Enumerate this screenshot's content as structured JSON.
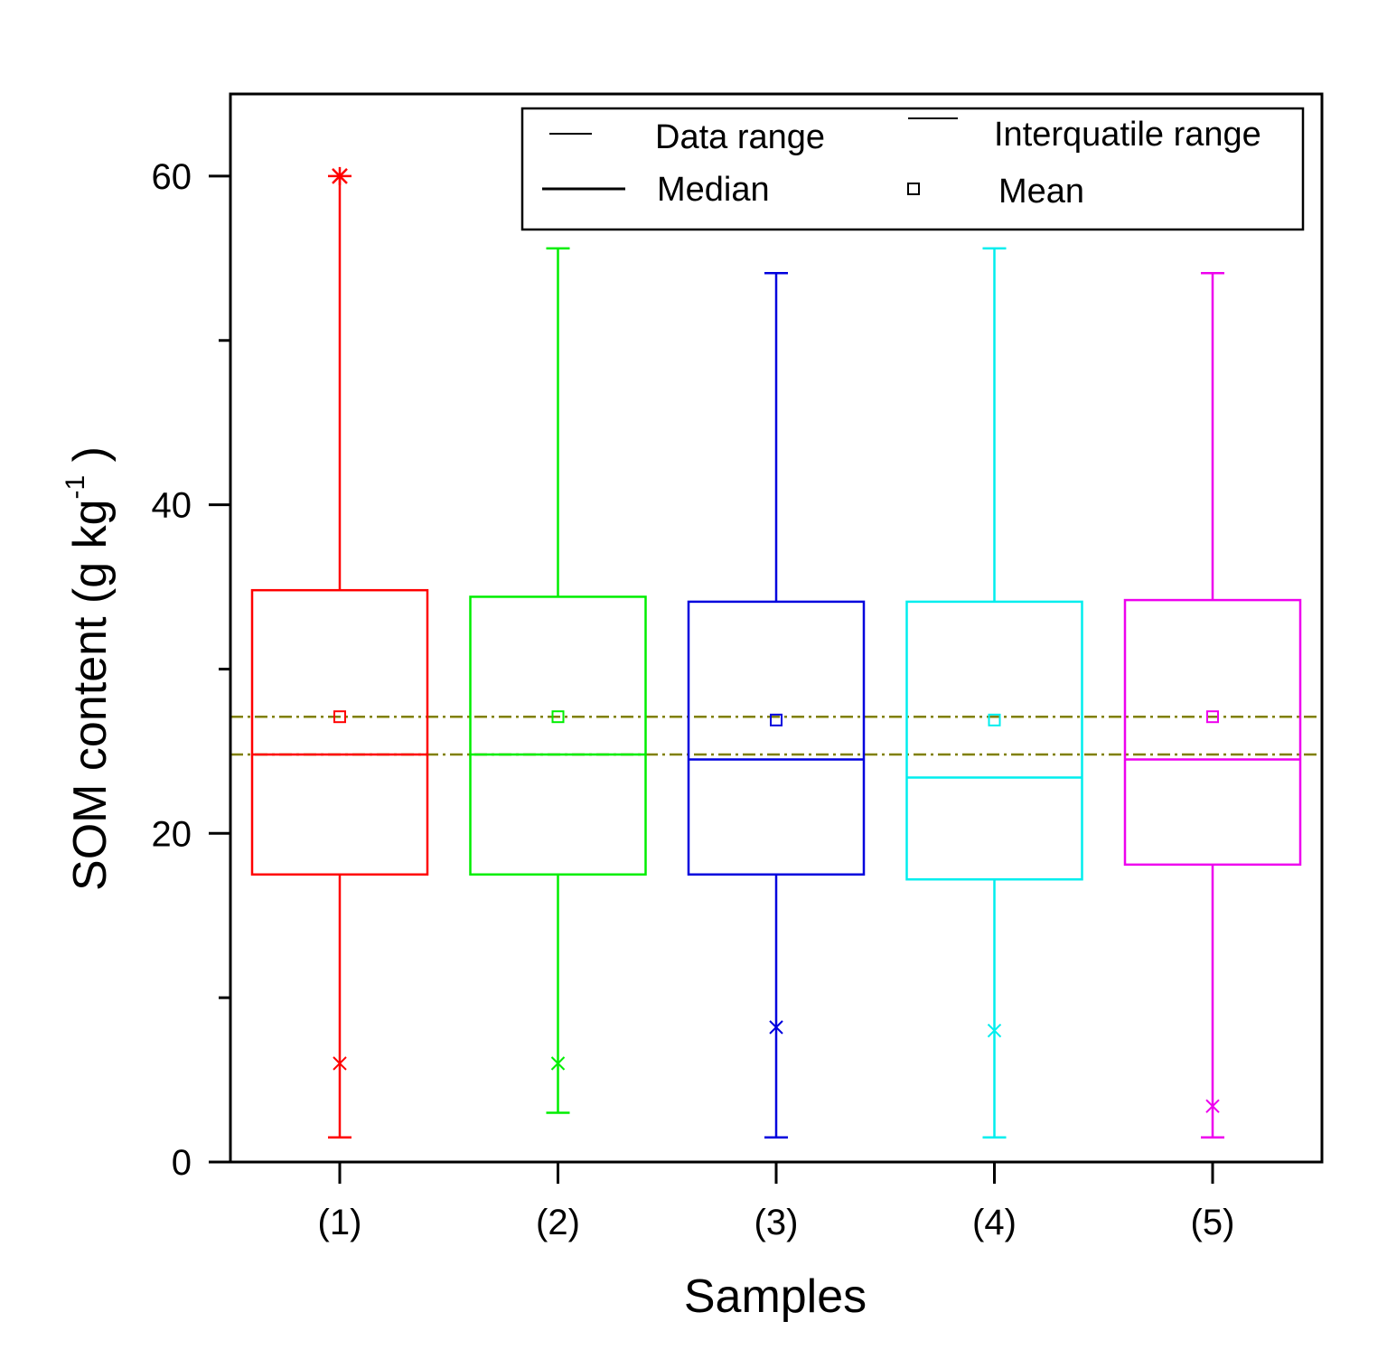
{
  "chart_data": {
    "type": "box",
    "xlabel": "Samples",
    "ylabel": "SOM content (g kg",
    "ylabel_sup": "-1",
    "ylabel_close": ")",
    "ylim": [
      0,
      65
    ],
    "yticks": [
      0,
      20,
      40,
      60
    ],
    "yticks_minor": [
      10,
      30,
      50
    ],
    "categories": [
      "(1)",
      "(2)",
      "(3)",
      "(4)",
      "(5)"
    ],
    "boxes": [
      {
        "category": "(1)",
        "color": "#ff0000",
        "min": 1.5,
        "q1": 17.5,
        "median": 24.8,
        "q3": 34.8,
        "max": 60,
        "mean": 27.1,
        "p1": 6,
        "p99": 60,
        "min_marker": "none",
        "max_marker": "star"
      },
      {
        "category": "(2)",
        "color": "#00ee00",
        "min": 3,
        "q1": 17.5,
        "median": 24.8,
        "q3": 34.4,
        "max": 55.6,
        "mean": 27.1,
        "p1": 6,
        "p99": null,
        "min_marker": "none",
        "max_marker": "none"
      },
      {
        "category": "(3)",
        "color": "#0000dd",
        "min": 1.5,
        "q1": 17.5,
        "median": 24.5,
        "q3": 34.1,
        "max": 54.1,
        "mean": 26.9,
        "p1": 8.2,
        "p99": null,
        "min_marker": "none",
        "max_marker": "none"
      },
      {
        "category": "(4)",
        "color": "#00eeee",
        "min": 1.5,
        "q1": 17.2,
        "median": 23.4,
        "q3": 34.1,
        "max": 55.6,
        "mean": 26.9,
        "p1": 8,
        "p99": null,
        "min_marker": "none",
        "max_marker": "none"
      },
      {
        "category": "(5)",
        "color": "#ee00ee",
        "min": 1.5,
        "q1": 18.1,
        "median": 24.5,
        "q3": 34.2,
        "max": 54.1,
        "mean": 27.1,
        "p1": 3.4,
        "p99": null,
        "min_marker": "none",
        "max_marker": "none"
      }
    ],
    "reference_lines": [
      {
        "value": 27.1,
        "color": "#808000",
        "style": "dash-dot"
      },
      {
        "value": 24.8,
        "color": "#808000",
        "style": "dash-dot"
      }
    ],
    "legend": {
      "placement": "top-right",
      "entries": [
        {
          "label": "Data range",
          "symbol": "short-line"
        },
        {
          "label": "Interquatile range",
          "symbol": "short-line"
        },
        {
          "label": "Median",
          "symbol": "long-line"
        },
        {
          "label": "Mean",
          "symbol": "square"
        }
      ]
    },
    "grid": false
  }
}
